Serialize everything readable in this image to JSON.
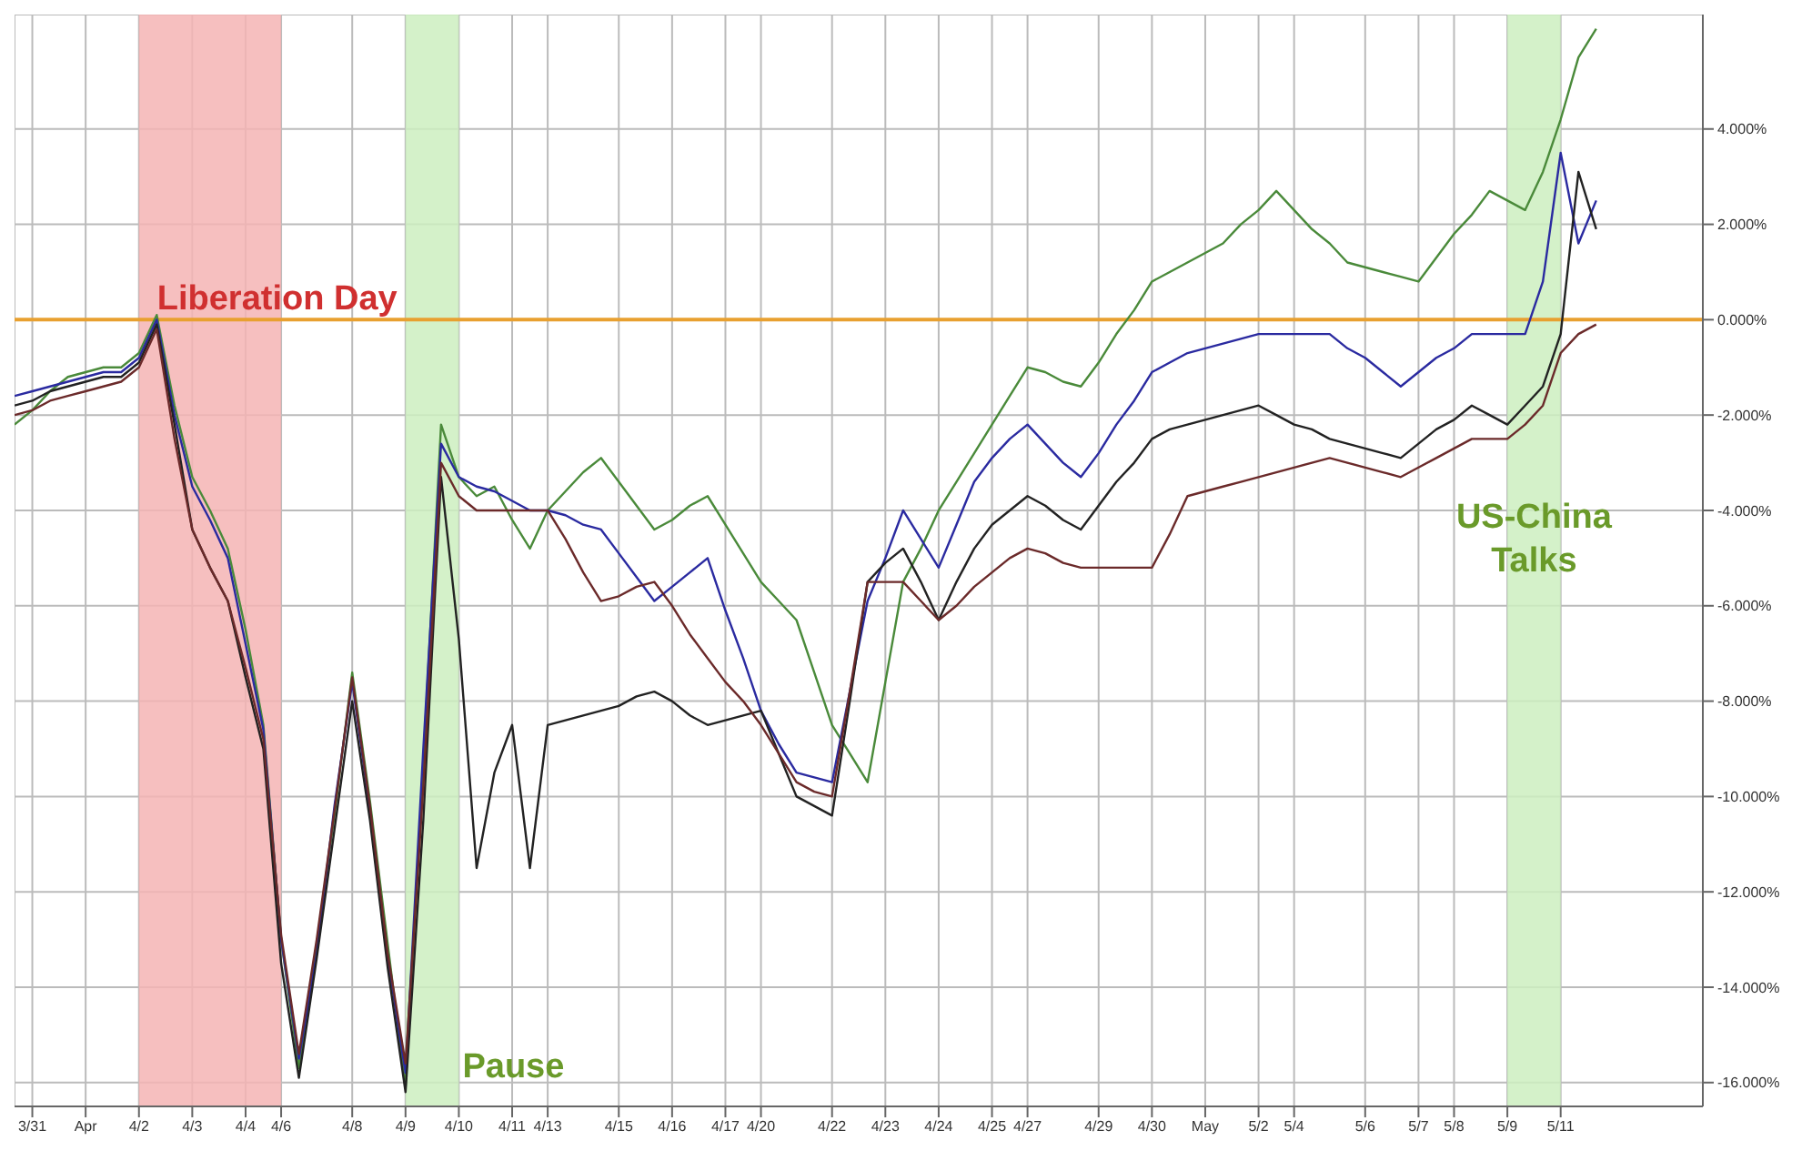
{
  "chart_data": {
    "type": "line",
    "categories": [
      null,
      "3/31",
      null,
      null,
      "Apr",
      null,
      null,
      "4/2",
      null,
      null,
      "4/3",
      null,
      null,
      "4/4",
      null,
      "4/6",
      null,
      null,
      null,
      "4/8",
      null,
      null,
      "4/9",
      null,
      null,
      "4/10",
      null,
      null,
      "4/11",
      null,
      "4/13",
      null,
      null,
      null,
      "4/15",
      null,
      null,
      "4/16",
      null,
      null,
      "4/17",
      null,
      "4/20",
      null,
      null,
      null,
      "4/22",
      null,
      null,
      "4/23",
      null,
      null,
      "4/24",
      null,
      null,
      "4/25",
      null,
      "4/27",
      null,
      null,
      null,
      "4/29",
      null,
      null,
      "4/30",
      null,
      null,
      "May",
      null,
      null,
      "5/2",
      null,
      "5/4",
      null,
      null,
      null,
      "5/6",
      null,
      null,
      "5/7",
      null,
      "5/8",
      null,
      null,
      "5/9",
      null,
      null,
      "5/11",
      null,
      null,
      null,
      null,
      null,
      null,
      null,
      null
    ],
    "series": [
      {
        "color": "#4a8a3a",
        "values": [
          -2.2,
          -1.9,
          -1.5,
          -1.2,
          -1.1,
          -1.0,
          -1.0,
          -0.7,
          0.1,
          -1.8,
          -3.3,
          -4.0,
          -4.8,
          -6.5,
          -8.5,
          -13.0,
          -15.7,
          -13.1,
          -10.4,
          -7.4,
          -10.1,
          -13.1,
          -16.1,
          -9.3,
          -2.2,
          -3.3,
          -3.7,
          -3.5,
          -4.2,
          -4.8,
          -4.0,
          -3.6,
          -3.2,
          -2.9,
          -3.4,
          -3.9,
          -4.4,
          -4.2,
          -3.9,
          -3.7,
          -4.3,
          -4.9,
          -5.5,
          -5.9,
          -6.3,
          -7.4,
          -8.5,
          -9.1,
          -9.7,
          -7.6,
          -5.5,
          -4.8,
          -4.0,
          -3.4,
          -2.8,
          -2.2,
          -1.6,
          -1.0,
          -1.1,
          -1.3,
          -1.4,
          -0.9,
          -0.3,
          0.2,
          0.8,
          1.0,
          1.2,
          1.4,
          1.6,
          2.0,
          2.3,
          2.7,
          2.3,
          1.9,
          1.6,
          1.2,
          1.1,
          1.0,
          0.9,
          0.8,
          1.3,
          1.8,
          2.2,
          2.7,
          2.5,
          2.3,
          3.1,
          4.2,
          5.5,
          6.1,
          null,
          null,
          null,
          null,
          null,
          null
        ]
      },
      {
        "color": "#2a2aa0",
        "values": [
          -1.6,
          -1.5,
          -1.4,
          -1.3,
          -1.2,
          -1.1,
          -1.1,
          -0.8,
          0.0,
          -2.0,
          -3.5,
          -4.2,
          -5.0,
          -6.8,
          -8.6,
          -13.0,
          -15.5,
          -13.3,
          -10.2,
          -7.6,
          -10.3,
          -13.4,
          -15.8,
          -9.0,
          -2.6,
          -3.3,
          -3.5,
          -3.6,
          -3.8,
          -4.0,
          -4.0,
          -4.1,
          -4.3,
          -4.4,
          -4.9,
          -5.4,
          -5.9,
          -5.6,
          -5.3,
          -5.0,
          -6.1,
          -7.1,
          -8.2,
          -8.9,
          -9.5,
          -9.6,
          -9.7,
          -7.8,
          -5.9,
          -5.0,
          -4.0,
          -4.6,
          -5.2,
          -4.3,
          -3.4,
          -2.9,
          -2.5,
          -2.2,
          -2.6,
          -3.0,
          -3.3,
          -2.8,
          -2.2,
          -1.7,
          -1.1,
          -0.9,
          -0.7,
          -0.6,
          -0.5,
          -0.4,
          -0.3,
          -0.3,
          -0.3,
          -0.3,
          -0.3,
          -0.6,
          -0.8,
          -1.1,
          -1.4,
          -1.1,
          -0.8,
          -0.6,
          -0.3,
          -0.3,
          -0.3,
          -0.3,
          0.8,
          3.5,
          1.6,
          2.5,
          null,
          null,
          null,
          null,
          null,
          null
        ]
      },
      {
        "color": "#222222",
        "values": [
          -1.8,
          -1.7,
          -1.5,
          -1.4,
          -1.3,
          -1.2,
          -1.2,
          -0.9,
          -0.1,
          -2.2,
          -4.4,
          -5.2,
          -5.9,
          -7.5,
          -9.0,
          -13.5,
          -15.9,
          -13.4,
          -10.7,
          -8.0,
          -10.5,
          -13.6,
          -16.2,
          -10.5,
          -3.3,
          -6.7,
          -11.5,
          -9.5,
          -8.5,
          -11.5,
          -8.5,
          -8.4,
          -8.3,
          -8.2,
          -8.1,
          -7.9,
          -7.8,
          -8.0,
          -8.3,
          -8.5,
          -8.4,
          -8.3,
          -8.2,
          -9.1,
          -10.0,
          -10.2,
          -10.4,
          -8.0,
          -5.5,
          -5.1,
          -4.8,
          -5.5,
          -6.3,
          -5.5,
          -4.8,
          -4.3,
          -4.0,
          -3.7,
          -3.9,
          -4.2,
          -4.4,
          -3.9,
          -3.4,
          -3.0,
          -2.5,
          -2.3,
          -2.2,
          -2.1,
          -2.0,
          -1.9,
          -1.8,
          -2.0,
          -2.2,
          -2.3,
          -2.5,
          -2.6,
          -2.7,
          -2.8,
          -2.9,
          -2.6,
          -2.3,
          -2.1,
          -1.8,
          -2.0,
          -2.2,
          -1.8,
          -1.4,
          -0.3,
          3.1,
          1.9,
          null,
          null,
          null,
          null,
          null,
          null
        ]
      },
      {
        "color": "#6b2a2a",
        "values": [
          -2.0,
          -1.9,
          -1.7,
          -1.6,
          -1.5,
          -1.4,
          -1.3,
          -1.0,
          -0.2,
          -2.5,
          -4.4,
          -5.2,
          -5.9,
          -7.3,
          -8.8,
          -12.9,
          -15.4,
          -13.0,
          -10.3,
          -7.5,
          -10.2,
          -13.3,
          -15.6,
          -9.8,
          -3.0,
          -3.7,
          -4.0,
          -4.0,
          -4.0,
          -4.0,
          -4.0,
          -4.6,
          -5.3,
          -5.9,
          -5.8,
          -5.6,
          -5.5,
          -6.0,
          -6.6,
          -7.1,
          -7.6,
          -8.0,
          -8.5,
          -9.1,
          -9.7,
          -9.9,
          -10.0,
          -7.8,
          -5.5,
          -5.5,
          -5.5,
          -5.9,
          -6.3,
          -6.0,
          -5.6,
          -5.3,
          -5.0,
          -4.8,
          -4.9,
          -5.1,
          -5.2,
          -5.2,
          -5.2,
          -5.2,
          -5.2,
          -4.5,
          -3.7,
          -3.6,
          -3.5,
          -3.4,
          -3.3,
          -3.2,
          -3.1,
          -3.0,
          -2.9,
          -3.0,
          -3.1,
          -3.2,
          -3.3,
          -3.1,
          -2.9,
          -2.7,
          -2.5,
          -2.5,
          -2.5,
          -2.2,
          -1.8,
          -0.7,
          -0.3,
          -0.1,
          null,
          null,
          null,
          null,
          null,
          null
        ]
      }
    ],
    "ylim": [
      -16.5,
      6.4
    ],
    "yticks": [
      {
        "value": -16,
        "label": "-16.000%"
      },
      {
        "value": -14,
        "label": "-14.000%"
      },
      {
        "value": -12,
        "label": "-12.000%"
      },
      {
        "value": -10,
        "label": "-10.000%"
      },
      {
        "value": -8,
        "label": "-8.000%"
      },
      {
        "value": -6,
        "label": "-6.000%"
      },
      {
        "value": -4,
        "label": "-4.000%"
      },
      {
        "value": -2,
        "label": "-2.000%"
      },
      {
        "value": 0,
        "label": "0.000%"
      },
      {
        "value": 2,
        "label": "2.000%"
      },
      {
        "value": 4,
        "label": "4.000%"
      }
    ],
    "grid": true,
    "ref_lines": [
      {
        "axis": "y",
        "value": 0,
        "color": "#e8a030"
      }
    ],
    "bands": [
      {
        "axis": "x",
        "from": "4/2",
        "to": "4/6",
        "label": "Liberation Day",
        "color": "#f4b4b4"
      },
      {
        "axis": "x",
        "from": "4/9",
        "to": "4/10",
        "label": "Pause",
        "color": "#cdeec0"
      },
      {
        "axis": "x",
        "from": "5/9",
        "to": "5/11",
        "label": "US-China Talks",
        "color": "#cdeec0"
      }
    ]
  }
}
